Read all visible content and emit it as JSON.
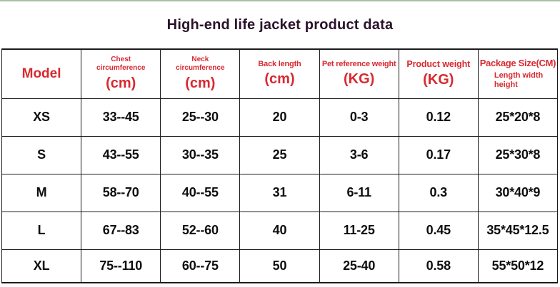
{
  "page": {
    "title": "High-end life jacket product data"
  },
  "colors": {
    "accent_red": "#d8292f",
    "title_color": "#2a132a",
    "border_color": "#1b1b1b",
    "top_strip": "#a9c2a5",
    "data_color": "#0d0d0d"
  },
  "table": {
    "columns": {
      "model": {
        "label": "Model"
      },
      "chest": {
        "label": "Chest circumference",
        "unit": "(cm)"
      },
      "neck": {
        "label": "Neck circumference",
        "unit": "(cm)"
      },
      "back": {
        "label": "Back length",
        "unit": "(cm)"
      },
      "pet": {
        "label": "Pet reference weight",
        "unit": "(KG)"
      },
      "product": {
        "label": "Product weight",
        "unit": "(KG)"
      },
      "package": {
        "label": "Package Size(CM)",
        "sub": "Length width height"
      }
    },
    "rows": [
      {
        "model": "XS",
        "chest": "33--45",
        "neck": "25--30",
        "back": "20",
        "pet": "0-3",
        "product": "0.12",
        "package": "25*20*8"
      },
      {
        "model": "S",
        "chest": "43--55",
        "neck": "30--35",
        "back": "25",
        "pet": "3-6",
        "product": "0.17",
        "package": "25*30*8"
      },
      {
        "model": "M",
        "chest": "58--70",
        "neck": "40--55",
        "back": "31",
        "pet": "6-11",
        "product": "0.3",
        "package": "30*40*9"
      },
      {
        "model": "L",
        "chest": "67--83",
        "neck": "52--60",
        "back": "40",
        "pet": "11-25",
        "product": "0.45",
        "package": "35*45*12.5"
      },
      {
        "model": "XL",
        "chest": "75--110",
        "neck": "60--75",
        "back": "50",
        "pet": "25-40",
        "product": "0.58",
        "package": "55*50*12"
      }
    ]
  }
}
